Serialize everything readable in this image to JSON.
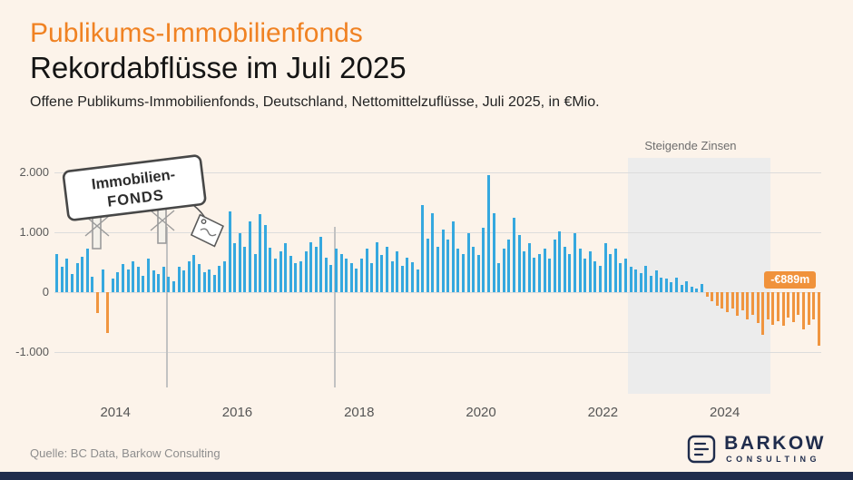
{
  "page": {
    "title_line1": "Publikums-Immobilienfonds",
    "title_line2": "Rekordabflüsse im Juli 2025",
    "description": "Offene Publikums-Immobilienfonds, Deutschland, Nettomittelzuflüsse, Juli 2025, in €Mio.",
    "source": "Quelle: BC Data, Barkow Consulting"
  },
  "sign": {
    "line1": "Immobilien-",
    "line2": "FONDS"
  },
  "logo": {
    "name": "BARKOW",
    "sub": "CONSULTING"
  },
  "chart_data": {
    "type": "bar",
    "title": "Offene Publikums-Immobilienfonds, Deutschland, Nettomittelzuflüsse, Juli 2025, in €Mio.",
    "unit": "€Mio.",
    "frequency": "monthly",
    "start": "2013-01",
    "end": "2025-07",
    "ylim": [
      -1660,
      2270
    ],
    "y_ticks": [
      "2.000",
      "1.000",
      "0",
      "-1.000"
    ],
    "y_tick_values": [
      2000,
      1000,
      0,
      -1000
    ],
    "x_ticks": [
      2014,
      2016,
      2018,
      2020,
      2022,
      2024
    ],
    "positive_color": "#35A8DF",
    "negative_color": "#F0953F",
    "grid": true,
    "legend": "none",
    "shaded_region": {
      "label": "Steigende Zinsen",
      "start": "2022-06",
      "end": "2024-09",
      "color": "#ECECEC"
    },
    "event_markers": [
      "2014-11",
      "2017-08"
    ],
    "annotation": {
      "text": "-€889m",
      "month": "2025-07",
      "value": -889
    },
    "series": [
      {
        "name": "Nettomittelzuflüsse",
        "values": [
          640,
          420,
          560,
          300,
          480,
          590,
          720,
          260,
          -350,
          380,
          -680,
          230,
          340,
          470,
          380,
          520,
          430,
          280,
          560,
          370,
          310,
          420,
          260,
          180,
          420,
          360,
          510,
          620,
          470,
          330,
          380,
          290,
          440,
          520,
          1350,
          820,
          980,
          760,
          1180,
          640,
          1300,
          1120,
          740,
          560,
          680,
          820,
          600,
          480,
          520,
          680,
          840,
          760,
          920,
          580,
          460,
          720,
          640,
          560,
          480,
          400,
          560,
          720,
          480,
          840,
          620,
          760,
          520,
          680,
          440,
          580,
          500,
          380,
          1460,
          900,
          1320,
          760,
          1040,
          880,
          1180,
          720,
          640,
          980,
          760,
          620,
          1080,
          1950,
          1320,
          480,
          720,
          880,
          1240,
          960,
          680,
          820,
          580,
          640,
          720,
          560,
          880,
          1020,
          760,
          640,
          980,
          720,
          560,
          680,
          520,
          440,
          820,
          640,
          720,
          480,
          560,
          420,
          380,
          320,
          440,
          280,
          360,
          240,
          220,
          160,
          240,
          120,
          180,
          90,
          60,
          130,
          -80,
          -150,
          -220,
          -280,
          -340,
          -280,
          -390,
          -310,
          -450,
          -380,
          -520,
          -710,
          -460,
          -540,
          -480,
          -560,
          -420,
          -500,
          -380,
          -620,
          -540,
          -460,
          -889
        ]
      }
    ]
  }
}
